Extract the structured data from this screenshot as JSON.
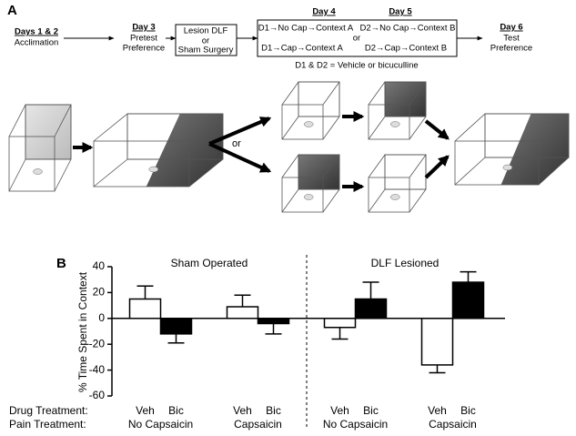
{
  "panel_a": {
    "label": "A",
    "acclimation": {
      "day": "Days 1 & 2",
      "lines": [
        "Acclimation"
      ]
    },
    "pretest": {
      "day": "Day 3",
      "lines": [
        "Pretest",
        "Preference"
      ]
    },
    "surgery": [
      "Lesion DLF",
      "or",
      "Sham Surgery"
    ],
    "conditioning": {
      "day4": "Day 4",
      "day5": "Day 5",
      "lines": [
        "D1→No Cap→Context A",
        "D2→No Cap→Context B",
        "or",
        "D1→Cap→Context A",
        "D2→Cap→Context B"
      ],
      "note": "D1 & D2 = Vehicle or bicuculline"
    },
    "test": {
      "day": "Day 6",
      "lines": [
        "Test",
        "Preference"
      ]
    },
    "diagram_or": "or"
  },
  "chart_data": {
    "type": "bar",
    "panel_label": "B",
    "ylabel": "% Time Spent in Context",
    "group_labels": [
      "Sham Operated",
      "DLF Lesioned"
    ],
    "row_labels": [
      "Drug Treatment:",
      "Pain Treatment:"
    ],
    "categories": [
      "No Capsaicin",
      "Capsaicin",
      "No Capsaicin",
      "Capsaicin"
    ],
    "series": [
      {
        "name": "Veh",
        "color": "#ffffff",
        "values": [
          15,
          9,
          -7,
          -36
        ],
        "errors": [
          10,
          9,
          9,
          6
        ]
      },
      {
        "name": "Bic",
        "color": "#000000",
        "values": [
          -12,
          -4,
          15,
          28
        ],
        "errors": [
          7,
          8,
          13,
          8
        ]
      }
    ],
    "ylim": [
      -60,
      40
    ],
    "yticks": [
      -60,
      -40,
      -20,
      0,
      20,
      40
    ],
    "grid": false
  }
}
